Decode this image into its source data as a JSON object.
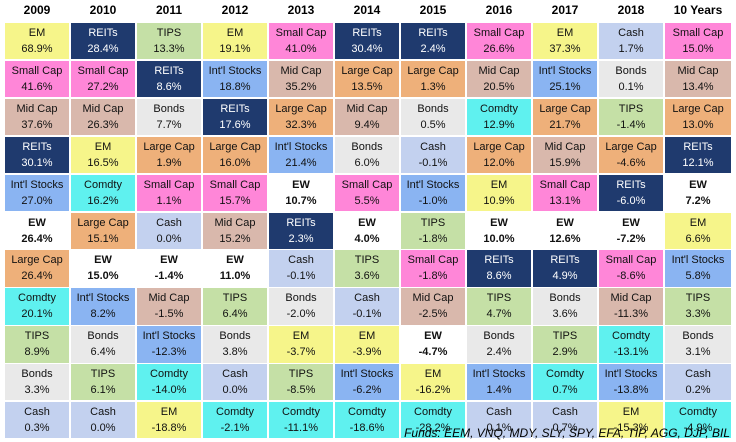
{
  "years": [
    "2009",
    "2010",
    "2011",
    "2012",
    "2013",
    "2014",
    "2015",
    "2016",
    "2017",
    "2018",
    "10 Years"
  ],
  "colors": {
    "EM": "#f6f58a",
    "REITs": "#1f3a6e",
    "TIPS": "#c5e0a6",
    "Small Cap": "#ff86d8",
    "Int'l Stocks": "#8ab4f2",
    "Cash": "#c3d1ef",
    "Mid Cap": "#d9b8ac",
    "Large Cap": "#eeb07a",
    "Bonds": "#e9e9e9",
    "Comdty": "#5ff1ef",
    "EW": "#ffffff"
  },
  "grid": [
    [
      [
        "EM",
        "68.9%"
      ],
      [
        "REITs",
        "28.4%"
      ],
      [
        "TIPS",
        "13.3%"
      ],
      [
        "EM",
        "19.1%"
      ],
      [
        "Small Cap",
        "41.0%"
      ],
      [
        "REITs",
        "30.4%"
      ],
      [
        "REITs",
        "2.4%"
      ],
      [
        "Small Cap",
        "26.6%"
      ],
      [
        "EM",
        "37.3%"
      ],
      [
        "Cash",
        "1.7%"
      ],
      [
        "Small Cap",
        "15.0%"
      ]
    ],
    [
      [
        "Small Cap",
        "41.6%"
      ],
      [
        "Small Cap",
        "27.2%"
      ],
      [
        "REITs",
        "8.6%"
      ],
      [
        "Int'l Stocks",
        "18.8%"
      ],
      [
        "Mid Cap",
        "35.2%"
      ],
      [
        "Large Cap",
        "13.5%"
      ],
      [
        "Large Cap",
        "1.3%"
      ],
      [
        "Mid Cap",
        "20.5%"
      ],
      [
        "Int'l Stocks",
        "25.1%"
      ],
      [
        "Bonds",
        "0.1%"
      ],
      [
        "Mid Cap",
        "13.4%"
      ]
    ],
    [
      [
        "Mid Cap",
        "37.6%"
      ],
      [
        "Mid Cap",
        "26.3%"
      ],
      [
        "Bonds",
        "7.7%"
      ],
      [
        "REITs",
        "17.6%"
      ],
      [
        "Large Cap",
        "32.3%"
      ],
      [
        "Mid Cap",
        "9.4%"
      ],
      [
        "Bonds",
        "0.5%"
      ],
      [
        "Comdty",
        "12.9%"
      ],
      [
        "Large Cap",
        "21.7%"
      ],
      [
        "TIPS",
        "-1.4%"
      ],
      [
        "Large Cap",
        "13.0%"
      ]
    ],
    [
      [
        "REITs",
        "30.1%"
      ],
      [
        "EM",
        "16.5%"
      ],
      [
        "Large Cap",
        "1.9%"
      ],
      [
        "Large Cap",
        "16.0%"
      ],
      [
        "Int'l Stocks",
        "21.4%"
      ],
      [
        "Bonds",
        "6.0%"
      ],
      [
        "Cash",
        "-0.1%"
      ],
      [
        "Large Cap",
        "12.0%"
      ],
      [
        "Mid Cap",
        "15.9%"
      ],
      [
        "Large Cap",
        "-4.6%"
      ],
      [
        "REITs",
        "12.1%"
      ]
    ],
    [
      [
        "Int'l Stocks",
        "27.0%"
      ],
      [
        "Comdty",
        "16.2%"
      ],
      [
        "Small Cap",
        "1.1%"
      ],
      [
        "Small Cap",
        "15.7%"
      ],
      [
        "EW",
        "10.7%"
      ],
      [
        "Small Cap",
        "5.5%"
      ],
      [
        "Int'l Stocks",
        "-1.0%"
      ],
      [
        "EM",
        "10.9%"
      ],
      [
        "Small Cap",
        "13.1%"
      ],
      [
        "REITs",
        "-6.0%"
      ],
      [
        "EW",
        "7.2%"
      ]
    ],
    [
      [
        "EW",
        "26.4%"
      ],
      [
        "Large Cap",
        "15.1%"
      ],
      [
        "Cash",
        "0.0%"
      ],
      [
        "Mid Cap",
        "15.2%"
      ],
      [
        "REITs",
        "2.3%"
      ],
      [
        "EW",
        "4.0%"
      ],
      [
        "TIPS",
        "-1.8%"
      ],
      [
        "EW",
        "10.0%"
      ],
      [
        "EW",
        "12.6%"
      ],
      [
        "EW",
        "-7.2%"
      ],
      [
        "EM",
        "6.6%"
      ]
    ],
    [
      [
        "Large Cap",
        "26.4%"
      ],
      [
        "EW",
        "15.0%"
      ],
      [
        "EW",
        "-1.4%"
      ],
      [
        "EW",
        "11.0%"
      ],
      [
        "Cash",
        "-0.1%"
      ],
      [
        "TIPS",
        "3.6%"
      ],
      [
        "Small Cap",
        "-1.8%"
      ],
      [
        "REITs",
        "8.6%"
      ],
      [
        "REITs",
        "4.9%"
      ],
      [
        "Small Cap",
        "-8.6%"
      ],
      [
        "Int'l Stocks",
        "5.8%"
      ]
    ],
    [
      [
        "Comdty",
        "20.1%"
      ],
      [
        "Int'l Stocks",
        "8.2%"
      ],
      [
        "Mid Cap",
        "-1.5%"
      ],
      [
        "TIPS",
        "6.4%"
      ],
      [
        "Bonds",
        "-2.0%"
      ],
      [
        "Cash",
        "-0.1%"
      ],
      [
        "Mid Cap",
        "-2.5%"
      ],
      [
        "TIPS",
        "4.7%"
      ],
      [
        "Bonds",
        "3.6%"
      ],
      [
        "Mid Cap",
        "-11.3%"
      ],
      [
        "TIPS",
        "3.3%"
      ]
    ],
    [
      [
        "TIPS",
        "8.9%"
      ],
      [
        "Bonds",
        "6.4%"
      ],
      [
        "Int'l Stocks",
        "-12.3%"
      ],
      [
        "Bonds",
        "3.8%"
      ],
      [
        "EM",
        "-3.7%"
      ],
      [
        "EM",
        "-3.9%"
      ],
      [
        "EW",
        "-4.7%"
      ],
      [
        "Bonds",
        "2.4%"
      ],
      [
        "TIPS",
        "2.9%"
      ],
      [
        "Comdty",
        "-13.1%"
      ],
      [
        "Bonds",
        "3.1%"
      ]
    ],
    [
      [
        "Bonds",
        "3.3%"
      ],
      [
        "TIPS",
        "6.1%"
      ],
      [
        "Comdty",
        "-14.0%"
      ],
      [
        "Cash",
        "0.0%"
      ],
      [
        "TIPS",
        "-8.5%"
      ],
      [
        "Int'l Stocks",
        "-6.2%"
      ],
      [
        "EM",
        "-16.2%"
      ],
      [
        "Int'l Stocks",
        "1.4%"
      ],
      [
        "Comdty",
        "0.7%"
      ],
      [
        "Int'l Stocks",
        "-13.8%"
      ],
      [
        "Cash",
        "0.2%"
      ]
    ],
    [
      [
        "Cash",
        "0.3%"
      ],
      [
        "Cash",
        "0.0%"
      ],
      [
        "EM",
        "-18.8%"
      ],
      [
        "Comdty",
        "-2.1%"
      ],
      [
        "Comdty",
        "-11.1%"
      ],
      [
        "Comdty",
        "-18.6%"
      ],
      [
        "Comdty",
        "-28.2%"
      ],
      [
        "Cash",
        "0.1%"
      ],
      [
        "Cash",
        "0.7%"
      ],
      [
        "EM",
        "-15.3%"
      ],
      [
        "Comdty",
        "-4.9%"
      ]
    ]
  ],
  "footer": "Funds: EEM, VNQ, MDY, SLY, SPY, EFA, TIP, AGG, DJP, BIL"
}
